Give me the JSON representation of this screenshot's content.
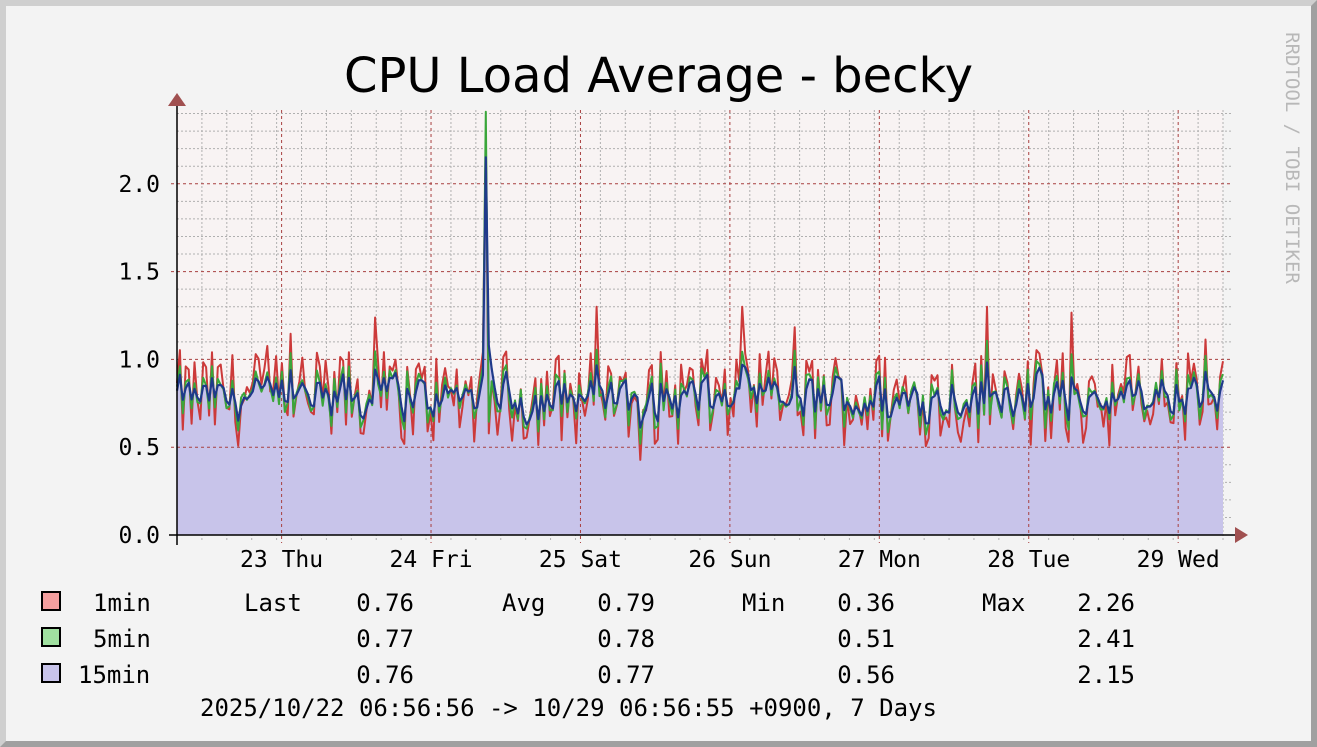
{
  "title": "CPU Load Average - becky",
  "watermark": "RRDTOOL / TOBI OETIKER",
  "footer": "2025/10/22 06:56:56 -> 10/29 06:56:55 +0900, 7 Days",
  "legend": {
    "headers": {
      "last": "Last",
      "avg": "Avg",
      "min": "Min",
      "max": "Max"
    },
    "rows": [
      {
        "name": "1min",
        "color": "#f4a0a0",
        "last": "0.76",
        "avg": "0.79",
        "min": "0.36",
        "max": "2.26"
      },
      {
        "name": "5min",
        "color": "#a0e0a0",
        "last": "0.77",
        "avg": "0.78",
        "min": "0.51",
        "max": "2.41"
      },
      {
        "name": "15min",
        "color": "#c8c4ea",
        "last": "0.76",
        "avg": "0.77",
        "min": "0.56",
        "max": "2.15"
      }
    ]
  },
  "colors": {
    "one_min_line": "#cc3a3a",
    "five_min_line": "#3aa63a",
    "fifteen_min_line": "#1f3a8a",
    "fifteen_min_fill": "#c8c4ea",
    "major_grid": "#a84040",
    "minor_grid": "#b0b0b0",
    "axis": "#000000",
    "arrow": "#a05050",
    "plot_bg": "#f8f3f3"
  },
  "chart_data": {
    "type": "area",
    "title": "CPU Load Average - becky",
    "xlabel": "",
    "ylabel": "",
    "ylim": [
      0,
      2.4
    ],
    "grid": true,
    "y_ticks": [
      {
        "value": 0.0,
        "label": "0.0"
      },
      {
        "value": 0.5,
        "label": "0.5"
      },
      {
        "value": 1.0,
        "label": "1.0"
      },
      {
        "value": 1.5,
        "label": "1.5"
      },
      {
        "value": 2.0,
        "label": "2.0"
      }
    ],
    "x_ticks": [
      "23 Thu",
      "24 Fri",
      "25 Sat",
      "26 Sun",
      "27 Mon",
      "28 Tue",
      "29 Wed"
    ],
    "x_range_days": [
      0,
      7
    ],
    "x_day_boundaries": [
      0.7,
      1.7,
      2.7,
      3.7,
      4.7,
      5.7,
      6.7
    ],
    "series": [
      {
        "name": "1min",
        "color": "#cc3a3a",
        "last": 0.76,
        "avg": 0.79,
        "min": 0.36,
        "max": 2.26
      },
      {
        "name": "5min",
        "color": "#3aa63a",
        "last": 0.77,
        "avg": 0.78,
        "min": 0.51,
        "max": 2.41
      },
      {
        "name": "15min",
        "color": "#1f3a8a",
        "last": 0.76,
        "avg": 0.77,
        "min": 0.56,
        "max": 2.15
      }
    ],
    "spike_day": 2.07
  }
}
